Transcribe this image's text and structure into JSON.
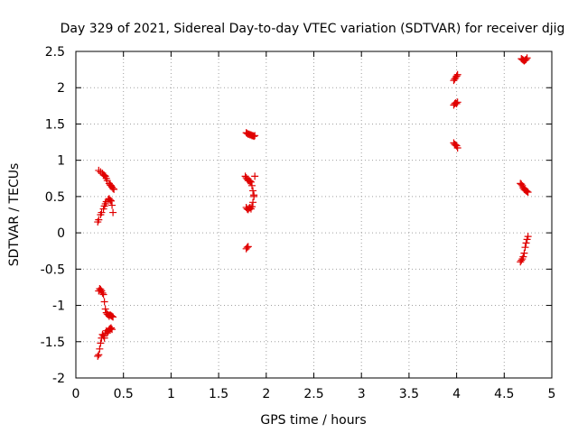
{
  "chart_data": {
    "type": "scatter",
    "title": "Day 329 of 2021, Sidereal Day-to-day VTEC variation (SDTVAR) for receiver djig",
    "xlabel": "GPS time / hours",
    "ylabel": "SDTVAR / TECUs",
    "xlim": [
      0,
      5
    ],
    "ylim": [
      -2,
      2.5
    ],
    "xticks": [
      0,
      0.5,
      1,
      1.5,
      2,
      2.5,
      3,
      3.5,
      4,
      4.5,
      5
    ],
    "yticks": [
      -2,
      -1.5,
      -1,
      -0.5,
      0,
      0.5,
      1,
      1.5,
      2,
      2.5
    ],
    "xtick_labels": [
      "0",
      "0.5",
      "1",
      "1.5",
      "2",
      "2.5",
      "3",
      "3.5",
      "4",
      "4.5",
      "5"
    ],
    "ytick_labels": [
      "-2",
      "-1.5",
      "-1",
      "-0.5",
      "0",
      "0.5",
      "1",
      "1.5",
      "2",
      "2.5"
    ],
    "grid": true,
    "marker": "+",
    "color": "#e00000",
    "series": [
      {
        "name": "SDTVAR",
        "x": [
          0.24,
          0.26,
          0.28,
          0.29,
          0.3,
          0.31,
          0.32,
          0.33,
          0.35,
          0.36,
          0.37,
          0.38,
          0.39,
          0.4,
          0.23,
          0.24,
          0.26,
          0.27,
          0.29,
          0.3,
          0.31,
          0.32,
          0.34,
          0.35,
          0.36,
          0.37,
          0.38,
          0.39,
          0.24,
          0.25,
          0.26,
          0.27,
          0.28,
          0.29,
          0.3,
          0.31,
          0.32,
          0.33,
          0.34,
          0.35,
          0.36,
          0.37,
          0.38,
          0.39,
          0.23,
          0.24,
          0.25,
          0.26,
          0.27,
          0.28,
          0.29,
          0.3,
          0.31,
          0.32,
          0.33,
          0.34,
          0.35,
          0.36,
          0.37,
          0.38,
          1.79,
          1.8,
          1.81,
          1.82,
          1.83,
          1.84,
          1.85,
          1.86,
          1.87,
          1.88,
          1.78,
          1.79,
          1.8,
          1.81,
          1.82,
          1.83,
          1.84,
          1.85,
          1.86,
          1.87,
          1.88,
          1.79,
          1.8,
          1.81,
          1.82,
          1.83,
          1.84,
          1.85,
          1.86,
          1.87,
          1.79,
          1.8,
          1.81,
          3.97,
          3.98,
          3.99,
          4.0,
          4.01,
          3.97,
          3.98,
          3.99,
          4.0,
          4.01,
          3.97,
          3.98,
          3.99,
          4.0,
          4.01,
          4.67,
          4.68,
          4.69,
          4.7,
          4.71,
          4.72,
          4.73,
          4.74,
          4.75,
          4.68,
          4.69,
          4.7,
          4.71,
          4.72,
          4.73,
          4.74,
          4.67,
          4.68,
          4.69,
          4.7,
          4.71,
          4.72,
          4.73,
          4.74,
          4.75
        ],
        "y": [
          0.86,
          0.84,
          0.82,
          0.8,
          0.79,
          0.78,
          0.75,
          0.72,
          0.68,
          0.66,
          0.65,
          0.63,
          0.61,
          0.6,
          0.15,
          0.18,
          0.25,
          0.28,
          0.33,
          0.37,
          0.4,
          0.43,
          0.46,
          0.47,
          0.45,
          0.44,
          0.38,
          0.28,
          -0.8,
          -0.77,
          -0.78,
          -0.8,
          -0.83,
          -0.85,
          -0.95,
          -1.05,
          -1.1,
          -1.12,
          -1.13,
          -1.15,
          -1.13,
          -1.14,
          -1.15,
          -1.16,
          -1.7,
          -1.68,
          -1.6,
          -1.52,
          -1.45,
          -1.4,
          -1.42,
          -1.45,
          -1.38,
          -1.35,
          -1.38,
          -1.36,
          -1.33,
          -1.32,
          -1.31,
          -1.33,
          1.38,
          1.37,
          1.36,
          1.36,
          1.35,
          1.35,
          1.34,
          1.34,
          1.33,
          1.34,
          0.78,
          0.76,
          0.74,
          0.72,
          0.72,
          0.71,
          0.7,
          0.65,
          0.58,
          0.5,
          0.78,
          0.35,
          0.33,
          0.32,
          0.34,
          0.35,
          0.33,
          0.36,
          0.42,
          0.52,
          -0.22,
          -0.2,
          -0.19,
          2.1,
          2.12,
          2.14,
          2.16,
          2.18,
          1.76,
          1.78,
          1.79,
          1.78,
          1.8,
          1.24,
          1.22,
          1.21,
          1.2,
          1.17,
          0.68,
          0.67,
          0.65,
          0.62,
          0.6,
          0.59,
          0.58,
          0.57,
          0.56,
          2.4,
          2.39,
          2.38,
          2.37,
          2.38,
          2.39,
          2.41,
          -0.4,
          -0.38,
          -0.36,
          -0.33,
          -0.28,
          -0.2,
          -0.14,
          -0.09,
          -0.05
        ]
      }
    ]
  }
}
